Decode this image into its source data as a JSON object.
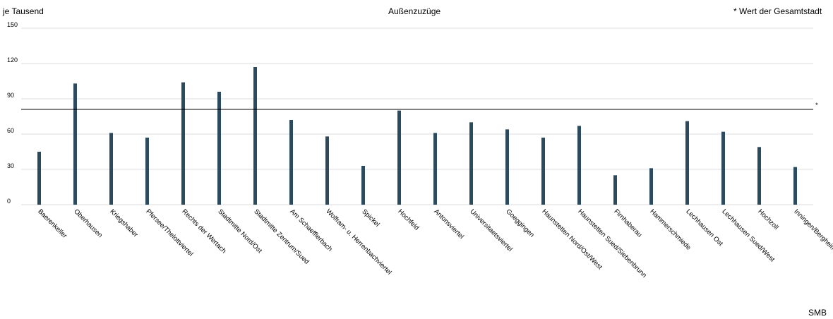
{
  "header": {
    "unit_label": "je Tausend",
    "note": "* Wert der Gesamtstadt",
    "footer": "SMB"
  },
  "colors": {
    "bar": "#2b4a5e",
    "grid": "#dddddd",
    "reference_line": "#000000"
  },
  "chart_data": {
    "type": "bar",
    "title": "Außenzuzüge",
    "xlabel": "",
    "ylabel": "je Tausend",
    "ylim": [
      0,
      150
    ],
    "yticks": [
      0,
      30,
      60,
      90,
      120,
      150
    ],
    "grid": true,
    "categories": [
      "Baerenkeller",
      "Oberhausen",
      "Kriegshaber",
      "Pfersee/Thelottviertel",
      "Rechts der Wertach",
      "Stadtmitte Nord/Ost",
      "Stadtmitte Zentrum/Sued",
      "Am Schaefflerbach",
      "Wolfram- u. Herrenbachviertel",
      "Spickel",
      "Hochfeld",
      "Antonsviertel",
      "Universitaetsviertel",
      "Goeggingen",
      "Haunstetten Nord/Ost/West",
      "Haunstetten Sued/Siebenbrunn",
      "Firnhaberau",
      "Hammerschmiede",
      "Lechhausen Ost",
      "Lechhausen Sued/West",
      "Hochzoll",
      "Inningen/Bergheim"
    ],
    "values": [
      45,
      103,
      61,
      57,
      104,
      96,
      117,
      72,
      58,
      33,
      80,
      61,
      70,
      64,
      57,
      67,
      25,
      31,
      71,
      62,
      49,
      32
    ],
    "reference": {
      "label": "*",
      "value": 81
    }
  }
}
